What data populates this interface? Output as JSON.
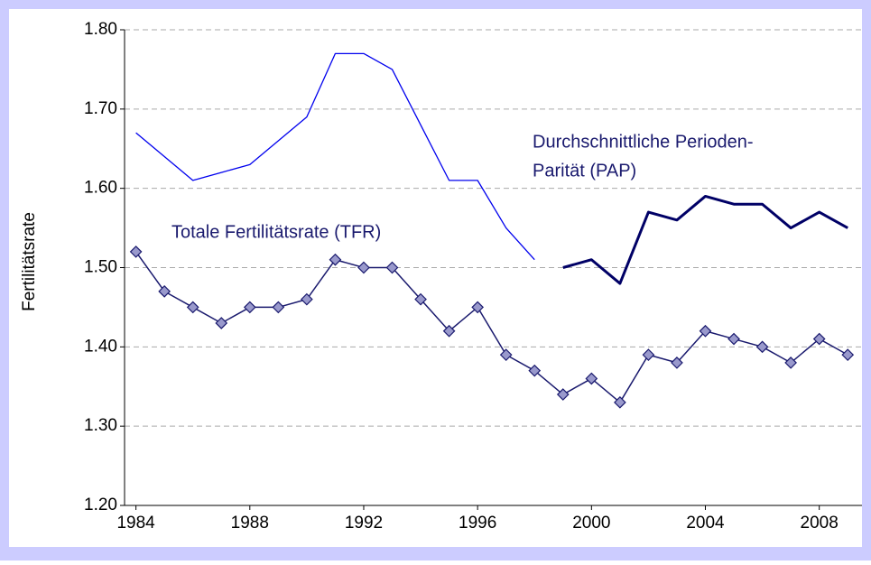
{
  "chart_data": {
    "type": "line",
    "ylabel": "Fertilitätsrate",
    "annotations": [
      "Totale Fertilitätsrate (TFR)",
      "Durchschnittliche Perioden-",
      "Parität (PAP)"
    ],
    "x": [
      1984,
      1985,
      1986,
      1987,
      1988,
      1989,
      1990,
      1991,
      1992,
      1993,
      1994,
      1995,
      1996,
      1997,
      1998,
      1999,
      2000,
      2001,
      2002,
      2003,
      2004,
      2005,
      2006,
      2007,
      2008,
      2009
    ],
    "series": [
      {
        "color": "#1a1a6e",
        "marker": "diamond",
        "marker_color": "#9999cc",
        "width": 1.5,
        "values": [
          1.52,
          1.47,
          1.45,
          1.43,
          1.45,
          1.45,
          1.46,
          1.51,
          1.5,
          1.5,
          1.46,
          1.42,
          1.45,
          1.39,
          1.37,
          1.34,
          1.36,
          1.33,
          1.39,
          1.38,
          1.42,
          1.41,
          1.4,
          1.38,
          1.41,
          1.39
        ]
      },
      {
        "color": "#0000ee",
        "width": 1.3,
        "values": [
          1.67,
          1.64,
          1.61,
          1.62,
          1.63,
          1.66,
          1.69,
          1.77,
          1.77,
          1.75,
          1.68,
          1.61,
          1.61,
          1.55,
          1.51,
          null,
          null,
          null,
          null,
          null,
          null,
          null,
          null,
          null,
          null,
          null
        ]
      },
      {
        "color": "#000066",
        "width": 3,
        "values": [
          null,
          null,
          null,
          null,
          null,
          null,
          null,
          null,
          null,
          null,
          null,
          null,
          null,
          null,
          null,
          1.5,
          1.51,
          1.48,
          1.57,
          1.56,
          1.59,
          1.58,
          1.58,
          1.55,
          1.57,
          1.55
        ]
      }
    ],
    "xlim": [
      1983.6,
      2009.5
    ],
    "xticks": [
      1984,
      1988,
      1992,
      1996,
      2000,
      2004,
      2008
    ],
    "ylim": [
      1.2,
      1.8
    ],
    "yticks": [
      {
        "value": 1.2,
        "label": "1.20"
      },
      {
        "value": 1.3,
        "label": "1.30"
      },
      {
        "value": 1.4,
        "label": "1.40"
      },
      {
        "value": 1.5,
        "label": "1.50"
      },
      {
        "value": 1.6,
        "label": "1.60"
      },
      {
        "value": 1.7,
        "label": "1.70"
      },
      {
        "value": 1.8,
        "label": "1.80"
      }
    ],
    "grid": true
  }
}
